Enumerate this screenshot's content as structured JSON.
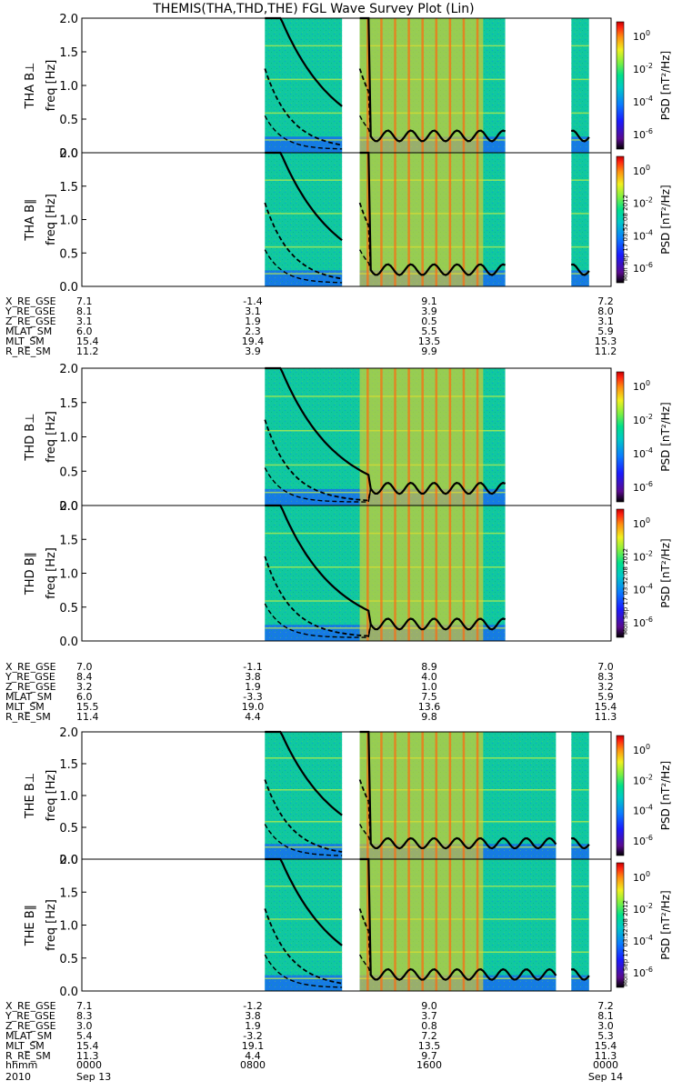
{
  "title": "THEMIS(THA,THD,THE) FGL Wave Survey Plot (Lin)",
  "colorbar_label": "PSD [nT²/Hz]",
  "colorbar_ticks": [
    {
      "base": "10",
      "exp": "0"
    },
    {
      "base": "10",
      "exp": "-2"
    },
    {
      "base": "10",
      "exp": "-4"
    },
    {
      "base": "10",
      "exp": "-6"
    }
  ],
  "colors": {
    "background": "#ffffff",
    "colormap": [
      "#101010",
      "#3a0a6e",
      "#1a1aff",
      "#0a6cff",
      "#00c8c8",
      "#00e08a",
      "#70f050",
      "#f0f020",
      "#ff9a10",
      "#ff3010",
      "#c00000"
    ]
  },
  "timestamp_stamp": "Mon Sep 17 03:52:08 2012",
  "chart_data": {
    "type": "heatmap",
    "ylabel": "freq [Hz]",
    "ylim": [
      0.0,
      2.0
    ],
    "yticks": [
      "0.0",
      "0.5",
      "1.0",
      "1.5",
      "2.0"
    ],
    "panels": [
      {
        "probe": "THA",
        "component": "B⊥"
      },
      {
        "probe": "THA",
        "component": "B∥"
      },
      {
        "probe": "THD",
        "component": "B⊥"
      },
      {
        "probe": "THD",
        "component": "B∥"
      },
      {
        "probe": "THE",
        "component": "B⊥"
      },
      {
        "probe": "THE",
        "component": "B∥"
      }
    ],
    "orbit_tables": [
      {
        "probe": "THA",
        "rows": [
          {
            "label": "X_RE_GSE",
            "values": [
              "7.1",
              "-1.4",
              "9.1",
              "7.2"
            ]
          },
          {
            "label": "Y_RE_GSE",
            "values": [
              "8.1",
              "3.1",
              "3.9",
              "8.0"
            ]
          },
          {
            "label": "Z_RE_GSE",
            "values": [
              "3.1",
              "1.9",
              "0.5",
              "3.1"
            ]
          },
          {
            "label": "MLAT_SM",
            "values": [
              "6.0",
              "2.3",
              "5.5",
              "5.9"
            ]
          },
          {
            "label": "MLT_SM",
            "values": [
              "15.4",
              "19.4",
              "13.5",
              "15.3"
            ]
          },
          {
            "label": "R_RE_SM",
            "values": [
              "11.2",
              "3.9",
              "9.9",
              "11.2"
            ]
          }
        ]
      },
      {
        "probe": "THD",
        "rows": [
          {
            "label": "X_RE_GSE",
            "values": [
              "7.0",
              "-1.1",
              "8.9",
              "7.0"
            ]
          },
          {
            "label": "Y_RE_GSE",
            "values": [
              "8.4",
              "3.8",
              "4.0",
              "8.3"
            ]
          },
          {
            "label": "Z_RE_GSE",
            "values": [
              "3.2",
              "1.9",
              "1.0",
              "3.2"
            ]
          },
          {
            "label": "MLAT_SM",
            "values": [
              "6.0",
              "-3.3",
              "7.5",
              "5.9"
            ]
          },
          {
            "label": "MLT_SM",
            "values": [
              "15.5",
              "19.0",
              "13.6",
              "15.4"
            ]
          },
          {
            "label": "R_RE_SM",
            "values": [
              "11.4",
              "4.4",
              "9.8",
              "11.3"
            ]
          }
        ]
      },
      {
        "probe": "THE",
        "rows": [
          {
            "label": "X_RE_GSE",
            "values": [
              "7.1",
              "-1.2",
              "9.0",
              "7.2"
            ]
          },
          {
            "label": "Y_RE_GSE",
            "values": [
              "8.3",
              "3.8",
              "3.7",
              "8.1"
            ]
          },
          {
            "label": "Z_RE_GSE",
            "values": [
              "3.0",
              "1.9",
              "0.8",
              "3.0"
            ]
          },
          {
            "label": "MLAT_SM",
            "values": [
              "5.4",
              "-3.2",
              "7.2",
              "5.3"
            ]
          },
          {
            "label": "MLT_SM",
            "values": [
              "15.4",
              "19.1",
              "13.5",
              "15.4"
            ]
          },
          {
            "label": "R_RE_SM",
            "values": [
              "11.3",
              "4.4",
              "9.7",
              "11.3"
            ]
          }
        ]
      }
    ],
    "time_axis": {
      "rows": [
        {
          "label": "hhmm",
          "values": [
            "0000",
            "0800",
            "1600",
            "0000"
          ]
        },
        {
          "label": "2010",
          "values": [
            "Sep 13",
            "",
            "",
            "Sep 14"
          ]
        }
      ]
    },
    "data_segments_hours": {
      "THA": [
        [
          8.3,
          11.8
        ],
        [
          12.6,
          19.2
        ],
        [
          22.2,
          23.0
        ]
      ],
      "THD": [
        [
          8.3,
          19.2
        ]
      ],
      "THE": [
        [
          8.3,
          11.8
        ],
        [
          12.6,
          21.5
        ],
        [
          22.2,
          23.0
        ]
      ]
    },
    "series_style": {
      "solid_curve": "black solid line",
      "dashed_curves": "black dashed lines"
    }
  }
}
